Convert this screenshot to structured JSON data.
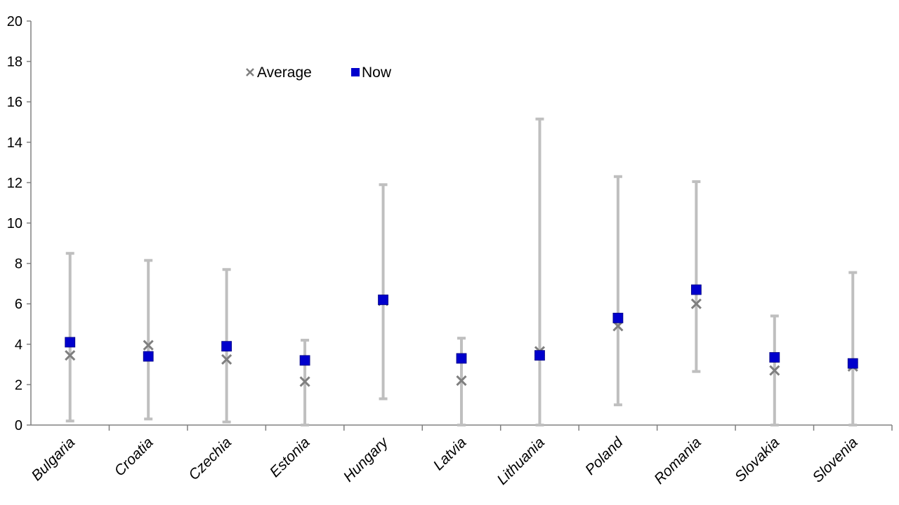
{
  "chart_data": {
    "type": "scatter",
    "title": "",
    "xlabel": "",
    "ylabel": "",
    "ylim": [
      0,
      20
    ],
    "yticks": [
      0,
      2,
      4,
      6,
      8,
      10,
      12,
      14,
      16,
      18,
      20
    ],
    "grid": false,
    "legend_position": "top-left",
    "categories": [
      "Bulgaria",
      "Croatia",
      "Czechia",
      "Estonia",
      "Hungary",
      "Latvia",
      "Lithuania",
      "Poland",
      "Romania",
      "Slovakia",
      "Slovenia"
    ],
    "range": {
      "low": [
        0.2,
        0.3,
        0.15,
        0.0,
        1.3,
        0.0,
        0.0,
        1.0,
        2.65,
        0.0,
        0.0
      ],
      "high": [
        8.5,
        8.15,
        7.7,
        4.2,
        11.9,
        4.3,
        15.15,
        12.3,
        12.05,
        5.4,
        7.55
      ],
      "color": "#bfbfbf"
    },
    "series": [
      {
        "name": "Average",
        "marker": "x",
        "color": "#7f7f7f",
        "values": [
          3.45,
          3.95,
          3.25,
          2.15,
          6.15,
          2.2,
          3.65,
          4.9,
          6.0,
          2.7,
          2.9
        ]
      },
      {
        "name": "Now",
        "marker": "square",
        "color": "#0000cc",
        "values": [
          4.1,
          3.4,
          3.9,
          3.2,
          6.2,
          3.3,
          3.45,
          5.3,
          6.7,
          3.35,
          3.05
        ]
      }
    ]
  }
}
